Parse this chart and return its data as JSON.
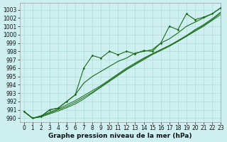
{
  "xlabel": "Graphe pression niveau de la mer (hPa)",
  "bg_color": "#cff0f0",
  "grid_color": "#b0ddd8",
  "line_color": "#1a6b1a",
  "xlim": [
    -0.5,
    23
  ],
  "ylim": [
    989.5,
    1003.8
  ],
  "yticks": [
    990,
    991,
    992,
    993,
    994,
    995,
    996,
    997,
    998,
    999,
    1000,
    1001,
    1002,
    1003
  ],
  "xticks": [
    0,
    1,
    2,
    3,
    4,
    5,
    6,
    7,
    8,
    9,
    10,
    11,
    12,
    13,
    14,
    15,
    16,
    17,
    18,
    19,
    20,
    21,
    22,
    23
  ],
  "main_series": [
    990.8,
    990.0,
    990.2,
    991.0,
    991.2,
    992.0,
    992.8,
    994.2,
    995.0,
    995.6,
    996.2,
    996.8,
    997.2,
    997.8,
    998.0,
    998.2,
    999.0,
    999.5,
    1000.2,
    1001.0,
    1001.5,
    1002.0,
    1002.5,
    1003.2
  ],
  "jagged_series": [
    990.8,
    990.0,
    990.2,
    991.0,
    991.2,
    992.0,
    992.8,
    996.0,
    997.5,
    997.2,
    998.0,
    997.6,
    998.0,
    997.7,
    998.1,
    998.0,
    999.0,
    1001.0,
    1000.6,
    1002.5,
    1001.8,
    1002.1,
    1002.5,
    1003.2
  ],
  "trend_lines": [
    [
      990.8,
      990.0,
      990.3,
      990.7,
      991.1,
      991.6,
      992.1,
      992.7,
      993.3,
      993.9,
      994.6,
      995.3,
      996.0,
      996.6,
      997.2,
      997.7,
      998.2,
      998.7,
      999.2,
      999.8,
      1000.4,
      1001.0,
      1001.7,
      1002.4
    ],
    [
      990.8,
      990.0,
      990.2,
      990.6,
      991.0,
      991.4,
      991.9,
      992.5,
      993.1,
      993.8,
      994.5,
      995.2,
      995.9,
      996.5,
      997.1,
      997.7,
      998.2,
      998.7,
      999.3,
      999.9,
      1000.6,
      1001.2,
      1001.9,
      1002.7
    ],
    [
      990.8,
      990.0,
      990.15,
      990.5,
      990.85,
      991.25,
      991.7,
      992.3,
      993.0,
      993.7,
      994.4,
      995.1,
      995.8,
      996.4,
      997.0,
      997.6,
      998.1,
      998.6,
      999.2,
      999.8,
      1000.5,
      1001.1,
      1001.8,
      1002.6
    ]
  ],
  "tick_fontsize": 5.5,
  "label_fontsize": 6.5
}
